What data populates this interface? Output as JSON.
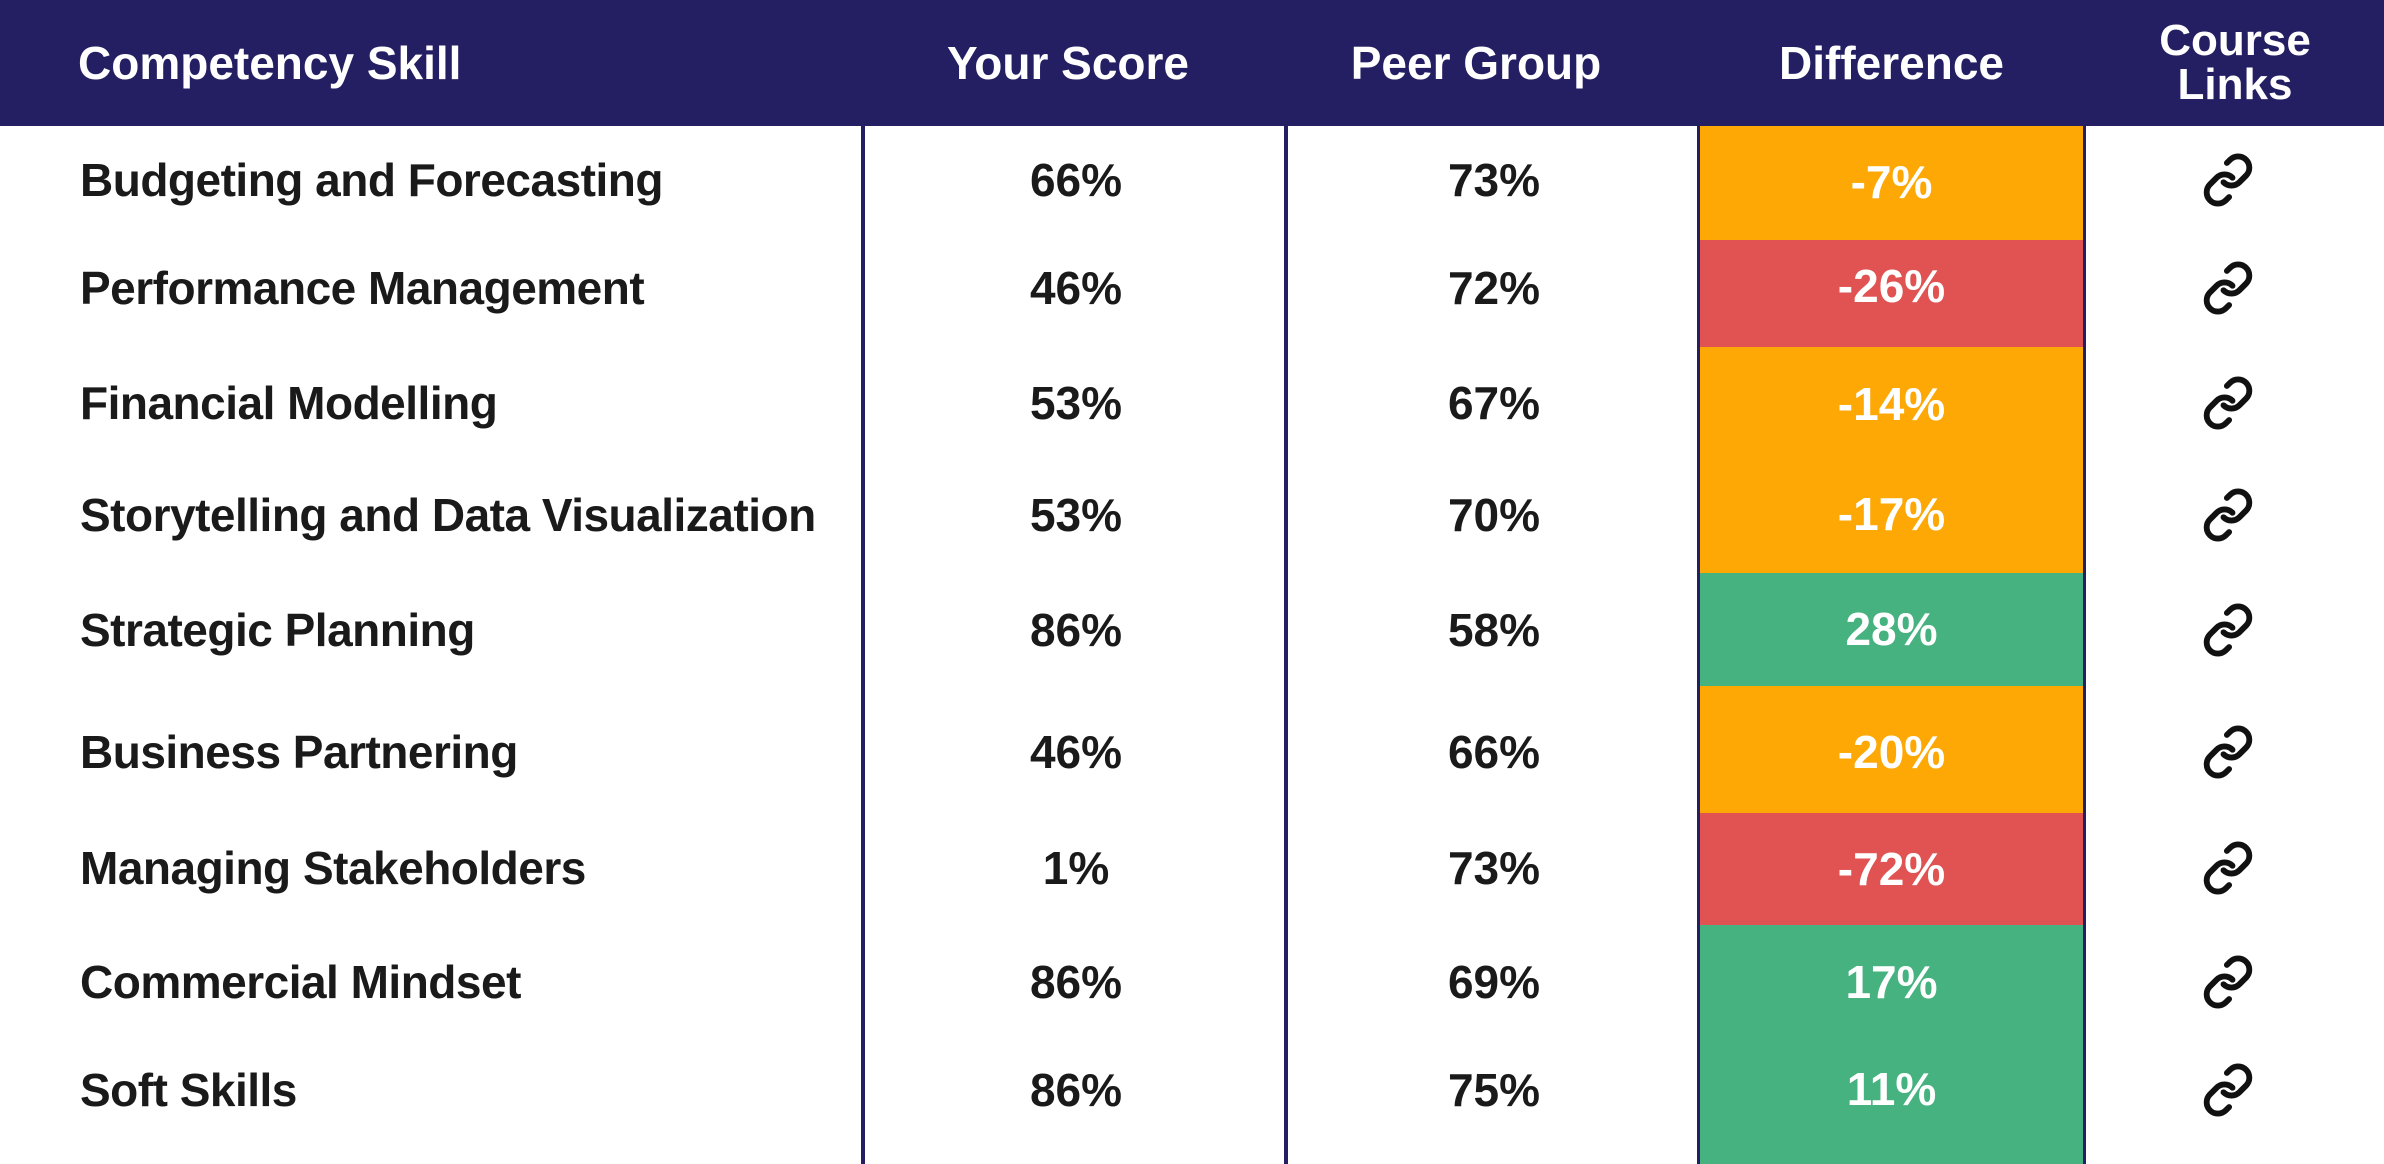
{
  "header": {
    "skill": "Competency Skill",
    "score": "Your Score",
    "peer": "Peer Group",
    "difference": "Difference",
    "links": "Course Links"
  },
  "colors": {
    "header_bg": "#241f63",
    "amber": "#fda805",
    "red": "#e15252",
    "green": "#46b27f"
  },
  "rows": [
    {
      "skill": "Budgeting and Forecasting",
      "score": "66%",
      "peer": "73%",
      "difference": "-7%",
      "status": "amber",
      "link_icon": "link-icon"
    },
    {
      "skill": "Performance Management",
      "score": "46%",
      "peer": "72%",
      "difference": "-26%",
      "status": "red",
      "link_icon": "link-icon"
    },
    {
      "skill": "Financial Modelling",
      "score": "53%",
      "peer": "67%",
      "difference": "-14%",
      "status": "amber",
      "link_icon": "link-icon"
    },
    {
      "skill": "Storytelling and Data Visualization",
      "score": "53%",
      "peer": "70%",
      "difference": "-17%",
      "status": "amber",
      "link_icon": "link-icon"
    },
    {
      "skill": "Strategic Planning",
      "score": "86%",
      "peer": "58%",
      "difference": "28%",
      "status": "green",
      "link_icon": "link-icon"
    },
    {
      "skill": "Business Partnering",
      "score": "46%",
      "peer": "66%",
      "difference": "-20%",
      "status": "amber",
      "link_icon": "link-icon"
    },
    {
      "skill": "Managing Stakeholders",
      "score": "1%",
      "peer": "73%",
      "difference": "-72%",
      "status": "red",
      "link_icon": "link-icon"
    },
    {
      "skill": "Commercial Mindset",
      "score": "86%",
      "peer": "69%",
      "difference": "17%",
      "status": "green",
      "link_icon": "link-icon"
    },
    {
      "skill": "Soft Skills",
      "score": "86%",
      "peer": "75%",
      "difference": "11%",
      "status": "green",
      "link_icon": "link-icon"
    }
  ]
}
